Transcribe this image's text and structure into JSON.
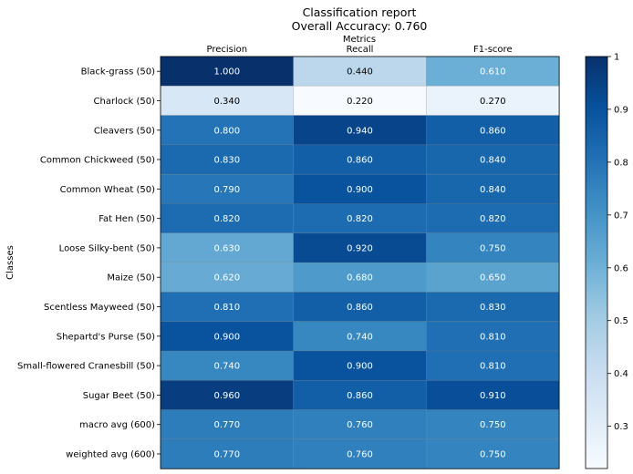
{
  "chart_data": {
    "type": "heatmap",
    "title": "Classification report",
    "subtitle": "Overall Accuracy: 0.760",
    "xlabel": "Metrics",
    "ylabel": "Classes",
    "columns": [
      "Precision",
      "Recall",
      "F1-score"
    ],
    "rows": [
      "Black-grass (50)",
      "Charlock (50)",
      "Cleavers (50)",
      "Common Chickweed (50)",
      "Common Wheat (50)",
      "Fat Hen (50)",
      "Loose Silky-bent (50)",
      "Maize (50)",
      "Scentless Mayweed (50)",
      "Shepartd's Purse (50)",
      "Small-flowered Cranesbill (50)",
      "Sugar Beet (50)",
      "macro avg (600)",
      "weighted avg (600)"
    ],
    "values": [
      [
        1.0,
        0.44,
        0.61
      ],
      [
        0.34,
        0.22,
        0.27
      ],
      [
        0.8,
        0.94,
        0.86
      ],
      [
        0.83,
        0.86,
        0.84
      ],
      [
        0.79,
        0.9,
        0.84
      ],
      [
        0.82,
        0.82,
        0.82
      ],
      [
        0.63,
        0.92,
        0.75
      ],
      [
        0.62,
        0.68,
        0.65
      ],
      [
        0.81,
        0.86,
        0.83
      ],
      [
        0.9,
        0.74,
        0.81
      ],
      [
        0.74,
        0.9,
        0.81
      ],
      [
        0.96,
        0.86,
        0.91
      ],
      [
        0.77,
        0.76,
        0.75
      ],
      [
        0.77,
        0.76,
        0.75
      ]
    ],
    "colorbar": {
      "colormap": "Blues",
      "range": [
        0.22,
        1.0
      ],
      "ticks": [
        0.3,
        0.4,
        0.5,
        0.6,
        0.7,
        0.8,
        0.9,
        1
      ]
    },
    "cell_text_color": "#ffffff",
    "low_cell_text_color": "#000000",
    "grid": false
  }
}
